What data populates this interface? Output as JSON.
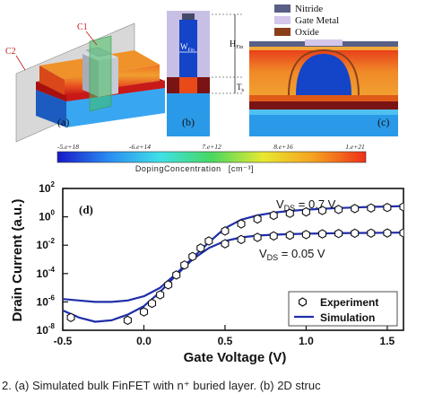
{
  "legend_materials": [
    {
      "label": "Nitride",
      "color": "#5a5f86"
    },
    {
      "label": "Gate Metal",
      "color": "#d4c7ea"
    },
    {
      "label": "Oxide",
      "color": "#8a3f1b"
    }
  ],
  "panel_labels": {
    "a": "(a)",
    "b": "(b)",
    "c": "(c)",
    "d": "(d)"
  },
  "panel_a": {
    "plane_c1": "C1",
    "plane_c2": "C2"
  },
  "panel_b": {
    "h_fin": "H",
    "h_fin_sub": "Fin",
    "w_fin": "W",
    "w_fin_sub": "Fin",
    "t_b": "T",
    "t_b_sub": "b"
  },
  "colorbar": {
    "ticks": [
      "-5.e+18",
      "-6.e+14",
      "7.e+12",
      "8.e+16",
      "1.e+21"
    ],
    "title": "DopingConcentration",
    "unit": "[cm⁻³]",
    "colors": [
      "#1818c8",
      "#2a8cf2",
      "#3fe0e8",
      "#48d860",
      "#e8e830",
      "#f5a020",
      "#ee3018"
    ]
  },
  "chart_data": {
    "type": "scatter",
    "panel": "(d)",
    "xlabel": "Gate Voltage (V)",
    "ylabel": "Drain Current (a.u.)",
    "xlim": [
      -0.5,
      1.6
    ],
    "xticks": [
      -0.5,
      0.0,
      0.5,
      1.0,
      1.5
    ],
    "xtick_labels": [
      "-0.5",
      "0.0",
      "0.5",
      "1.0",
      "1.5"
    ],
    "ylim_log10": [
      -8,
      2
    ],
    "yticks_exp": [
      2,
      0,
      -2,
      -4,
      -6,
      -8
    ],
    "ytick_base": "10",
    "yscale": "log",
    "grid": false,
    "legend_position": "bottom-right",
    "legend": [
      {
        "label": "Experiment",
        "marker": "hexagon-open"
      },
      {
        "label": "Simulation",
        "style": "line",
        "color": "#1f2fa8"
      }
    ],
    "annotations": [
      {
        "base": "V",
        "sub": "DS",
        "text": " = 0.7 V"
      },
      {
        "base": "V",
        "sub": "DS",
        "text": " = 0.05 V"
      }
    ],
    "series": [
      {
        "curve": "Vds=0.7V",
        "experiment": {
          "x": [
            -0.45,
            -0.1,
            0.0,
            0.05,
            0.1,
            0.15,
            0.2,
            0.25,
            0.3,
            0.35,
            0.4,
            0.5,
            0.6,
            0.7,
            0.8,
            0.9,
            1.0,
            1.1,
            1.2,
            1.3,
            1.4,
            1.5,
            1.6
          ],
          "log10_y": [
            -7.1,
            -7.3,
            -6.7,
            -6.1,
            -5.5,
            -4.8,
            -4.1,
            -3.4,
            -2.8,
            -2.2,
            -1.7,
            -1.0,
            -0.5,
            -0.15,
            0.1,
            0.25,
            0.35,
            0.45,
            0.52,
            0.58,
            0.62,
            0.66,
            0.7
          ]
        },
        "simulation": {
          "x": [
            -0.5,
            -0.4,
            -0.3,
            -0.2,
            -0.15,
            -0.1,
            0.0,
            0.1,
            0.2,
            0.3,
            0.4,
            0.5,
            0.6,
            0.7,
            0.8,
            0.9,
            1.0,
            1.1,
            1.2,
            1.3,
            1.4,
            1.5,
            1.6
          ],
          "log10_y": [
            -5.8,
            -5.9,
            -6.0,
            -6.0,
            -5.95,
            -5.9,
            -5.6,
            -5.0,
            -4.0,
            -2.9,
            -1.8,
            -0.8,
            -0.2,
            0.1,
            0.3,
            0.42,
            0.5,
            0.57,
            0.62,
            0.66,
            0.7,
            0.73,
            0.76
          ]
        }
      },
      {
        "curve": "Vds=0.05V",
        "experiment": {
          "x": [
            0.5,
            0.6,
            0.7,
            0.8,
            0.9,
            1.0,
            1.1,
            1.2,
            1.3,
            1.4,
            1.5,
            1.6
          ],
          "log10_y": [
            -1.9,
            -1.6,
            -1.45,
            -1.35,
            -1.3,
            -1.25,
            -1.2,
            -1.18,
            -1.16,
            -1.15,
            -1.14,
            -1.13
          ]
        },
        "simulation": {
          "x": [
            -0.5,
            -0.4,
            -0.3,
            -0.2,
            -0.1,
            0.0,
            0.1,
            0.2,
            0.3,
            0.4,
            0.5,
            0.6,
            0.7,
            0.8,
            0.9,
            1.0,
            1.1,
            1.2,
            1.3,
            1.4,
            1.5,
            1.6
          ],
          "log10_y": [
            -6.6,
            -7.1,
            -7.4,
            -7.3,
            -6.9,
            -6.3,
            -5.3,
            -4.1,
            -3.0,
            -2.2,
            -1.7,
            -1.45,
            -1.32,
            -1.26,
            -1.22,
            -1.19,
            -1.17,
            -1.15,
            -1.14,
            -1.13,
            -1.12,
            -1.11
          ]
        }
      }
    ]
  },
  "caption": "2.  (a) Simulated bulk FinFET with n⁺ buried layer. (b) 2D struc"
}
